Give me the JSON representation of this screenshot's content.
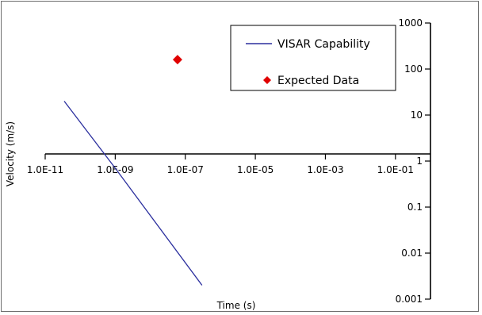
{
  "chart_data": {
    "type": "scatter",
    "x_scale": "log",
    "y_scale": "log",
    "xlabel": "Time (s)",
    "ylabel": "Velocity (m/s)",
    "xlim": [
      1e-11,
      1
    ],
    "ylim": [
      0.001,
      1000
    ],
    "x_ticks": [
      {
        "value": 1e-11,
        "label": "1.0E-11"
      },
      {
        "value": 1e-09,
        "label": "1.0E-09"
      },
      {
        "value": 1e-07,
        "label": "1.0E-07"
      },
      {
        "value": 1e-05,
        "label": "1.0E-05"
      },
      {
        "value": 0.001,
        "label": "1.0E-03"
      },
      {
        "value": 0.1,
        "label": "1.0E-01"
      }
    ],
    "y_ticks": [
      {
        "value": 1000,
        "label": "1000"
      },
      {
        "value": 100,
        "label": "100"
      },
      {
        "value": 10,
        "label": "10"
      },
      {
        "value": 1,
        "label": "1"
      },
      {
        "value": 0.1,
        "label": "0.1"
      },
      {
        "value": 0.01,
        "label": "0.01"
      },
      {
        "value": 0.001,
        "label": "0.001"
      }
    ],
    "grid": false,
    "legend_position": "top-right",
    "series": [
      {
        "name": "VISAR Capability",
        "kind": "line",
        "color": "#2b2f9e",
        "points": [
          {
            "x": 3.5e-11,
            "y": 20
          },
          {
            "x": 1e-09,
            "y": 0.7
          },
          {
            "x": 3e-07,
            "y": 0.002
          }
        ]
      },
      {
        "name": "Expected Data",
        "kind": "marker",
        "marker": "diamond",
        "color": "#e00000",
        "points": [
          {
            "x": 6e-08,
            "y": 160
          }
        ]
      }
    ]
  }
}
